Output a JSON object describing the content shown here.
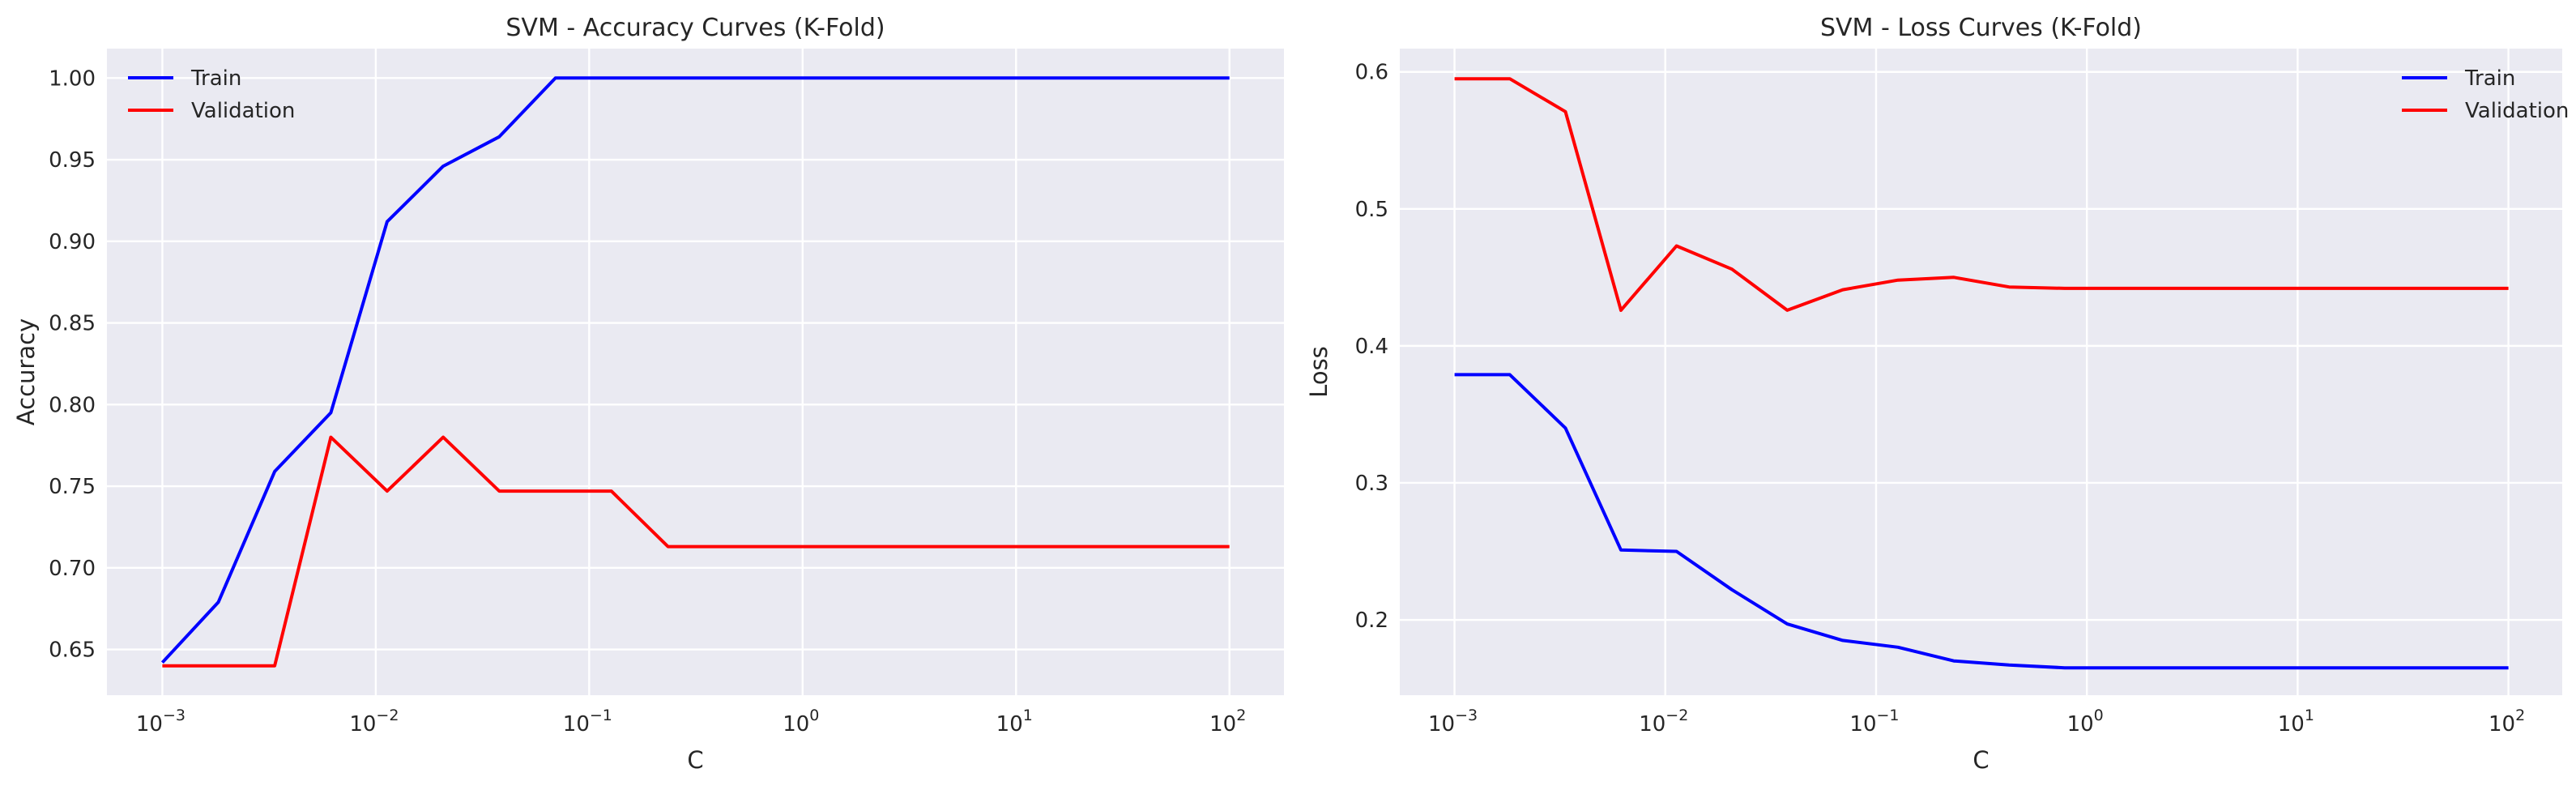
{
  "chart_data": [
    {
      "type": "line",
      "title": "SVM - Accuracy Curves (K-Fold)",
      "xlabel": "C",
      "ylabel": "Accuracy",
      "xscale": "log",
      "xlim": [
        0.00055,
        180
      ],
      "ylim": [
        0.622,
        1.018
      ],
      "grid": true,
      "legend": "upper left",
      "x_ticks": [
        {
          "base": "10",
          "exp": "−3",
          "value": 0.001
        },
        {
          "base": "10",
          "exp": "−2",
          "value": 0.01
        },
        {
          "base": "10",
          "exp": "−1",
          "value": 0.1
        },
        {
          "base": "10",
          "exp": "0",
          "value": 1
        },
        {
          "base": "10",
          "exp": "1",
          "value": 10
        },
        {
          "base": "10",
          "exp": "2",
          "value": 100
        }
      ],
      "y_ticks": [
        {
          "label": "0.65",
          "value": 0.65
        },
        {
          "label": "0.70",
          "value": 0.7
        },
        {
          "label": "0.75",
          "value": 0.75
        },
        {
          "label": "0.80",
          "value": 0.8
        },
        {
          "label": "0.85",
          "value": 0.85
        },
        {
          "label": "0.90",
          "value": 0.9
        },
        {
          "label": "0.95",
          "value": 0.95
        },
        {
          "label": "1.00",
          "value": 1.0
        }
      ],
      "x": [
        0.001,
        0.00183,
        0.00336,
        0.00616,
        0.0113,
        0.0207,
        0.0379,
        0.0695,
        0.127,
        0.234,
        0.428,
        0.785,
        1.44,
        2.64,
        4.83,
        8.86,
        16.2,
        29.8,
        54.6,
        100
      ],
      "series": [
        {
          "name": "Train",
          "color": "#0000ff",
          "values": [
            0.642,
            0.679,
            0.759,
            0.795,
            0.912,
            0.946,
            0.964,
            1.0,
            1.0,
            1.0,
            1.0,
            1.0,
            1.0,
            1.0,
            1.0,
            1.0,
            1.0,
            1.0,
            1.0,
            1.0
          ]
        },
        {
          "name": "Validation",
          "color": "#ff0000",
          "values": [
            0.64,
            0.64,
            0.64,
            0.78,
            0.747,
            0.78,
            0.747,
            0.747,
            0.747,
            0.713,
            0.713,
            0.713,
            0.713,
            0.713,
            0.713,
            0.713,
            0.713,
            0.713,
            0.713,
            0.713
          ]
        }
      ]
    },
    {
      "type": "line",
      "title": "SVM - Loss Curves (K-Fold)",
      "xlabel": "C",
      "ylabel": "Loss",
      "xscale": "log",
      "xlim": [
        0.00055,
        180
      ],
      "ylim": [
        0.145,
        0.617
      ],
      "grid": true,
      "legend": "upper right",
      "x_ticks": [
        {
          "base": "10",
          "exp": "−3",
          "value": 0.001
        },
        {
          "base": "10",
          "exp": "−2",
          "value": 0.01
        },
        {
          "base": "10",
          "exp": "−1",
          "value": 0.1
        },
        {
          "base": "10",
          "exp": "0",
          "value": 1
        },
        {
          "base": "10",
          "exp": "1",
          "value": 10
        },
        {
          "base": "10",
          "exp": "2",
          "value": 100
        }
      ],
      "y_ticks": [
        {
          "label": "0.2",
          "value": 0.2
        },
        {
          "label": "0.3",
          "value": 0.3
        },
        {
          "label": "0.4",
          "value": 0.4
        },
        {
          "label": "0.5",
          "value": 0.5
        },
        {
          "label": "0.6",
          "value": 0.6
        }
      ],
      "x": [
        0.001,
        0.00183,
        0.00336,
        0.00616,
        0.0113,
        0.0207,
        0.0379,
        0.0695,
        0.127,
        0.234,
        0.428,
        0.785,
        1.44,
        2.64,
        4.83,
        8.86,
        16.2,
        29.8,
        54.6,
        100
      ],
      "series": [
        {
          "name": "Train",
          "color": "#0000ff",
          "values": [
            0.379,
            0.379,
            0.34,
            0.251,
            0.25,
            0.222,
            0.197,
            0.185,
            0.18,
            0.17,
            0.167,
            0.165,
            0.165,
            0.165,
            0.165,
            0.165,
            0.165,
            0.165,
            0.165,
            0.165
          ]
        },
        {
          "name": "Validation",
          "color": "#ff0000",
          "values": [
            0.595,
            0.595,
            0.571,
            0.426,
            0.473,
            0.456,
            0.426,
            0.441,
            0.448,
            0.45,
            0.443,
            0.442,
            0.442,
            0.442,
            0.442,
            0.442,
            0.442,
            0.442,
            0.442,
            0.442
          ]
        }
      ]
    }
  ]
}
